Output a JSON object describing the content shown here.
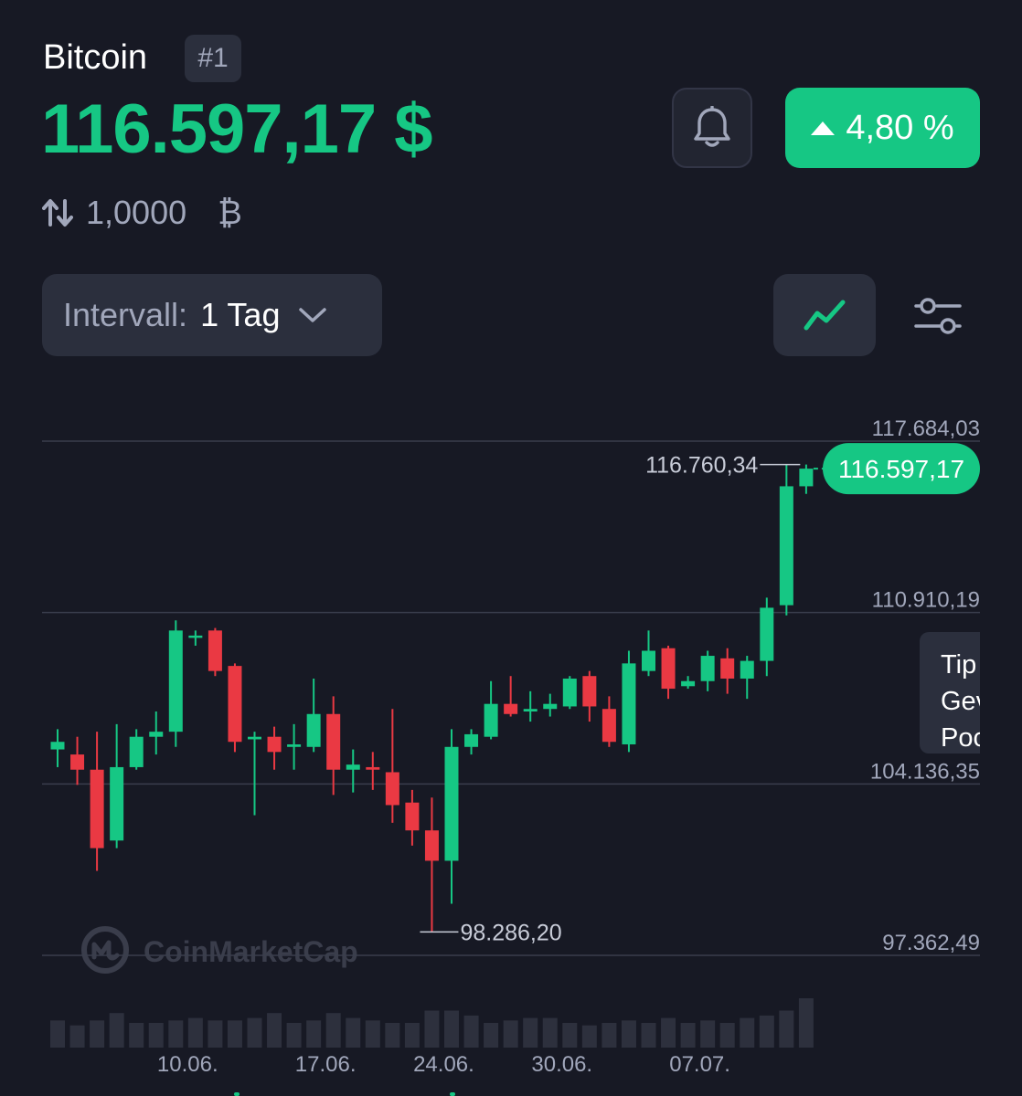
{
  "header": {
    "coin_name": "Bitcoin",
    "rank": "#1",
    "price": "116.597,17 $",
    "change_pct": "4,80 %",
    "change_direction": "up",
    "conversion_amount": "1,0000",
    "conversion_symbol": "₿"
  },
  "controls": {
    "interval_label": "Intervall:",
    "interval_value": "1 Tag",
    "bell_icon": "bell-icon",
    "chart_type_icon": "line-chart-icon",
    "settings_icon": "sliders-icon"
  },
  "tooltip": {
    "lines": [
      "Tip",
      "Gev",
      "Poc"
    ]
  },
  "watermark": "CoinMarketCap",
  "colors": {
    "background": "#171924",
    "up": "#16c784",
    "down": "#ea3943",
    "muted": "#a1a7bb",
    "panel": "#2b2f3d"
  },
  "chart_data": {
    "type": "candlestick",
    "ylim": [
      97362.49,
      117684.03
    ],
    "y_grid_labels": [
      "117.684,03",
      "110.910,19",
      "104.136,35",
      "97.362,49"
    ],
    "y_grid_values": [
      117684.03,
      110910.19,
      104136.35,
      97362.49
    ],
    "x_tick_labels": [
      "10.06.",
      "17.06.",
      "24.06.",
      "30.06.",
      "07.07."
    ],
    "x_tick_index": [
      6,
      13,
      19,
      25,
      32
    ],
    "high_marker": {
      "label": "116.760,34",
      "value": 116760.34,
      "index": 37
    },
    "low_marker": {
      "label": "98.286,20",
      "value": 98286.2,
      "index": 19
    },
    "current_price": {
      "label": "116.597,17",
      "value": 116597.17
    },
    "candles": [
      {
        "o": 105500,
        "h": 106300,
        "l": 104800,
        "c": 105800
      },
      {
        "o": 105300,
        "h": 106000,
        "l": 104100,
        "c": 104700
      },
      {
        "o": 104700,
        "h": 106200,
        "l": 100700,
        "c": 101600
      },
      {
        "o": 101900,
        "h": 106500,
        "l": 101600,
        "c": 104800
      },
      {
        "o": 104800,
        "h": 106300,
        "l": 104700,
        "c": 106000
      },
      {
        "o": 106000,
        "h": 107000,
        "l": 105300,
        "c": 106200
      },
      {
        "o": 106200,
        "h": 110600,
        "l": 105600,
        "c": 110200
      },
      {
        "o": 110000,
        "h": 110200,
        "l": 109600,
        "c": 110000
      },
      {
        "o": 110200,
        "h": 110300,
        "l": 108400,
        "c": 108600
      },
      {
        "o": 108800,
        "h": 108900,
        "l": 105400,
        "c": 105800
      },
      {
        "o": 105900,
        "h": 106200,
        "l": 102900,
        "c": 106000
      },
      {
        "o": 106000,
        "h": 106400,
        "l": 104700,
        "c": 105400
      },
      {
        "o": 105600,
        "h": 106500,
        "l": 104700,
        "c": 105700
      },
      {
        "o": 105600,
        "h": 108300,
        "l": 105400,
        "c": 106900
      },
      {
        "o": 106900,
        "h": 107600,
        "l": 103700,
        "c": 104700
      },
      {
        "o": 104700,
        "h": 105500,
        "l": 103800,
        "c": 104900
      },
      {
        "o": 104800,
        "h": 105400,
        "l": 103900,
        "c": 104700
      },
      {
        "o": 104600,
        "h": 107100,
        "l": 102600,
        "c": 103300
      },
      {
        "o": 103400,
        "h": 103900,
        "l": 101700,
        "c": 102300
      },
      {
        "o": 102300,
        "h": 103600,
        "l": 98286.2,
        "c": 101100
      },
      {
        "o": 101100,
        "h": 106300,
        "l": 99400,
        "c": 105600
      },
      {
        "o": 105600,
        "h": 106300,
        "l": 105300,
        "c": 106100
      },
      {
        "o": 106000,
        "h": 108200,
        "l": 105900,
        "c": 107300
      },
      {
        "o": 107300,
        "h": 108400,
        "l": 106800,
        "c": 106900
      },
      {
        "o": 107000,
        "h": 107800,
        "l": 106600,
        "c": 107100
      },
      {
        "o": 107100,
        "h": 107700,
        "l": 106800,
        "c": 107300
      },
      {
        "o": 107200,
        "h": 108400,
        "l": 107100,
        "c": 108300
      },
      {
        "o": 108400,
        "h": 108600,
        "l": 106600,
        "c": 107200
      },
      {
        "o": 107100,
        "h": 107600,
        "l": 105600,
        "c": 105800
      },
      {
        "o": 105700,
        "h": 109400,
        "l": 105400,
        "c": 108900
      },
      {
        "o": 108600,
        "h": 110200,
        "l": 108400,
        "c": 109400
      },
      {
        "o": 109500,
        "h": 109600,
        "l": 107500,
        "c": 107900
      },
      {
        "o": 108000,
        "h": 108400,
        "l": 107900,
        "c": 108200
      },
      {
        "o": 108200,
        "h": 109400,
        "l": 107800,
        "c": 109200
      },
      {
        "o": 109100,
        "h": 109500,
        "l": 107700,
        "c": 108300
      },
      {
        "o": 108300,
        "h": 109200,
        "l": 107500,
        "c": 109000
      },
      {
        "o": 109000,
        "h": 111500,
        "l": 108400,
        "c": 111100
      },
      {
        "o": 111200,
        "h": 116760.34,
        "l": 110800,
        "c": 115900
      },
      {
        "o": 115900,
        "h": 116760.34,
        "l": 115600,
        "c": 116597.17
      }
    ],
    "volume_relative": [
      0.55,
      0.45,
      0.55,
      0.7,
      0.5,
      0.5,
      0.55,
      0.6,
      0.55,
      0.55,
      0.6,
      0.7,
      0.5,
      0.55,
      0.7,
      0.6,
      0.55,
      0.5,
      0.5,
      0.75,
      0.75,
      0.65,
      0.5,
      0.55,
      0.6,
      0.6,
      0.5,
      0.45,
      0.5,
      0.55,
      0.5,
      0.6,
      0.5,
      0.55,
      0.5,
      0.6,
      0.65,
      0.75,
      1.0
    ]
  }
}
